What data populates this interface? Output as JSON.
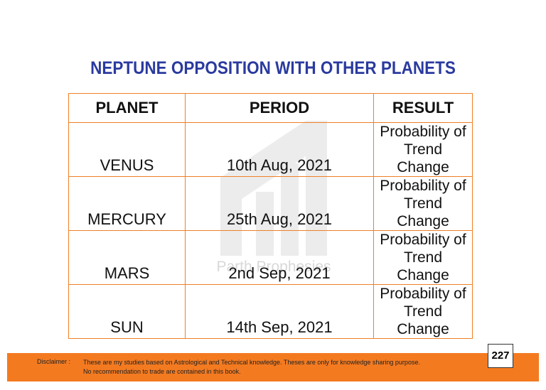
{
  "header": {
    "title": "NEPTUNE OPPOSITION WITH OTHER PLANETS"
  },
  "table": {
    "columns": [
      "PLANET",
      "PERIOD",
      "RESULT"
    ],
    "rows": [
      [
        "VENUS",
        "10th Aug, 2021",
        "Probability of Trend Change"
      ],
      [
        "MERCURY",
        "25th Aug, 2021",
        "Probability of Trend Change"
      ],
      [
        "MARS",
        "2nd Sep, 2021",
        "Probability of Trend Change"
      ],
      [
        "SUN",
        "14th Sep, 2021",
        "Probability of Trend Change"
      ]
    ]
  },
  "watermark": "Parth Prophesies",
  "footer": {
    "label": "Disclaimer :",
    "lines": [
      "These are my studies based on Astrological and Technical knowledge. Theses are only for knowledge sharing purpose.",
      "No recommendation to trade are contained in this book."
    ],
    "page_number": "227"
  }
}
